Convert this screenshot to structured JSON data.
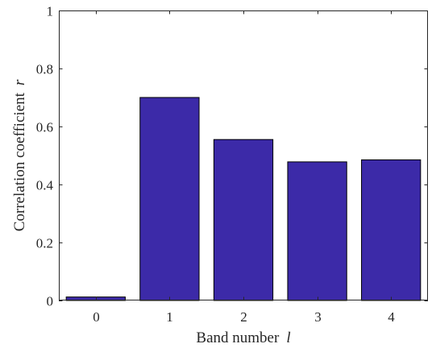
{
  "chart_data": {
    "type": "bar",
    "categories": [
      "0",
      "1",
      "2",
      "3",
      "4"
    ],
    "values": [
      0.012,
      0.7,
      0.555,
      0.478,
      0.485
    ],
    "title": "",
    "xlabel": "Band number",
    "xlabel_var": "l",
    "ylabel": "Correlation coefficient",
    "ylabel_var": "r",
    "ylim": [
      0,
      1
    ],
    "yticks": [
      "0",
      "0.2",
      "0.4",
      "0.6",
      "0.8",
      "1"
    ],
    "grid": false,
    "bar_color": "#3c2aa8",
    "axis_color": "#262626"
  }
}
